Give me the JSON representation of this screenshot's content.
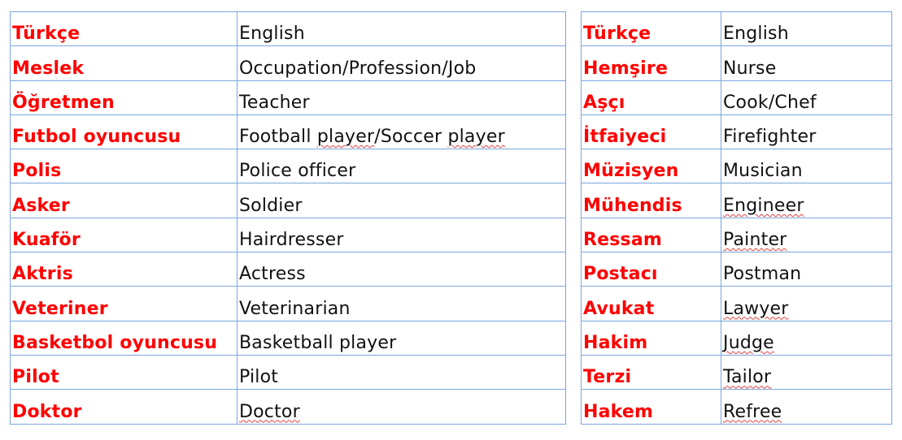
{
  "tables": [
    {
      "rows": [
        {
          "tr": "Türkçe",
          "en": [
            {
              "t": "English"
            }
          ]
        },
        {
          "tr": "Meslek",
          "en": [
            {
              "t": "Occupation/Profession/Job"
            }
          ]
        },
        {
          "tr": "Öğretmen",
          "en": [
            {
              "t": "Teacher"
            }
          ]
        },
        {
          "tr": "Futbol oyuncusu",
          "en": [
            {
              "t": "Football "
            },
            {
              "t": "player",
              "err": true
            },
            {
              "t": "/Soccer "
            },
            {
              "t": "player",
              "err": true
            }
          ]
        },
        {
          "tr": "Polis",
          "en": [
            {
              "t": "Police officer"
            }
          ]
        },
        {
          "tr": "Asker",
          "en": [
            {
              "t": "Soldier"
            }
          ]
        },
        {
          "tr": "Kuaför",
          "en": [
            {
              "t": "Hairdresser"
            }
          ]
        },
        {
          "tr": "Aktris",
          "en": [
            {
              "t": "Actress"
            }
          ]
        },
        {
          "tr": "Veteriner",
          "en": [
            {
              "t": "Veterinarian"
            }
          ]
        },
        {
          "tr": "Basketbol oyuncusu",
          "en": [
            {
              "t": "Basketball player"
            }
          ]
        },
        {
          "tr": "Pilot",
          "en": [
            {
              "t": "Pilot"
            }
          ]
        },
        {
          "tr": "Doktor",
          "en": [
            {
              "t": "Doctor",
              "err": true
            }
          ]
        }
      ]
    },
    {
      "rows": [
        {
          "tr": "Türkçe",
          "en": [
            {
              "t": "English"
            }
          ]
        },
        {
          "tr": "Hemşire",
          "en": [
            {
              "t": "Nurse"
            }
          ]
        },
        {
          "tr": "Aşçı",
          "en": [
            {
              "t": "Cook/Chef"
            }
          ]
        },
        {
          "tr": "İtfaiyeci",
          "en": [
            {
              "t": "Firefighter"
            }
          ]
        },
        {
          "tr": "Müzisyen",
          "en": [
            {
              "t": "Musician"
            }
          ]
        },
        {
          "tr": "Mühendis",
          "en": [
            {
              "t": "Engineer",
              "err": true
            }
          ]
        },
        {
          "tr": "Ressam",
          "en": [
            {
              "t": "Painter",
              "err": true
            }
          ]
        },
        {
          "tr": "Postacı",
          "en": [
            {
              "t": "Postman"
            }
          ]
        },
        {
          "tr": "Avukat",
          "en": [
            {
              "t": "Lawyer",
              "err": true
            }
          ]
        },
        {
          "tr": "Hakim",
          "en": [
            {
              "t": "Judge",
              "err": true
            }
          ]
        },
        {
          "tr": "Terzi",
          "en": [
            {
              "t": "Tailor",
              "err": true
            }
          ]
        },
        {
          "tr": "Hakem",
          "en": [
            {
              "t": "Refree",
              "err": true
            }
          ]
        }
      ]
    }
  ],
  "colors": {
    "turkish_text": "#ff0000",
    "english_text": "#111111",
    "border": "#7aa6dc",
    "spellcheck": "#e84040"
  }
}
